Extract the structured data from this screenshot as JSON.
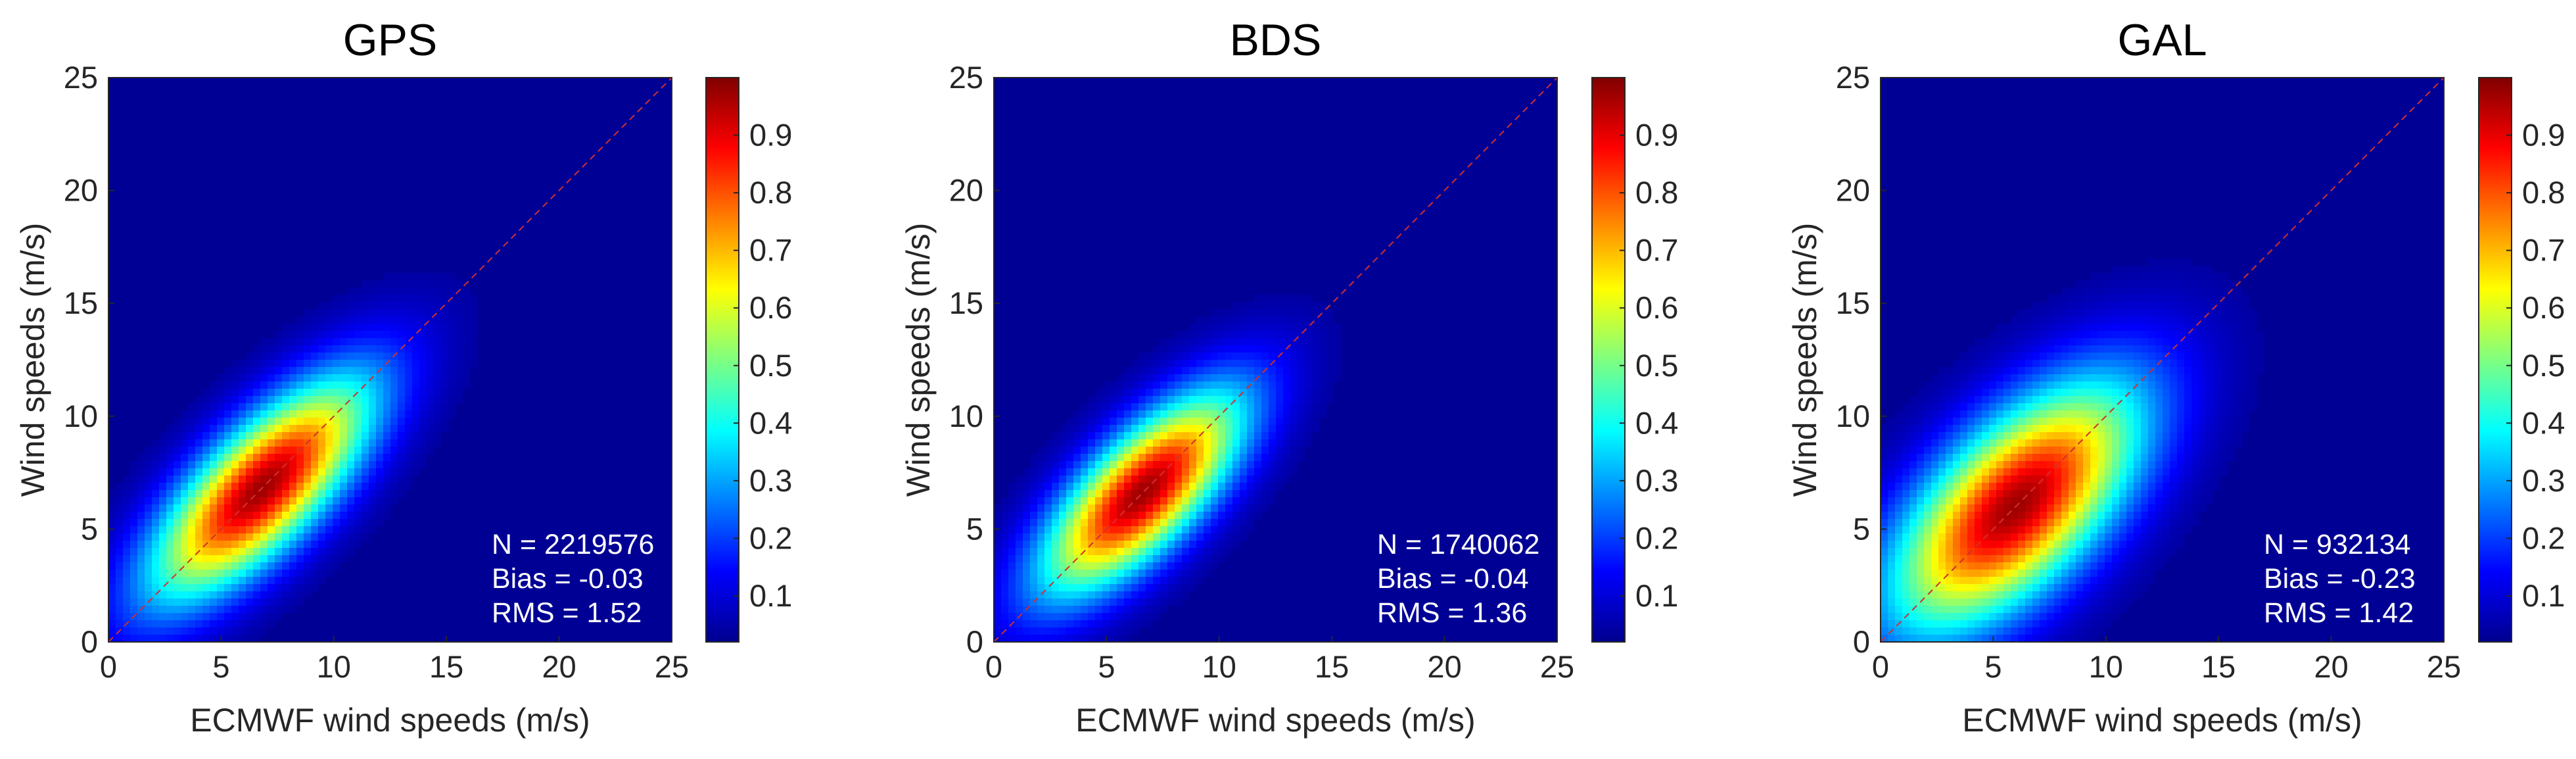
{
  "chart_data": [
    {
      "type": "heatmap",
      "title": "GPS",
      "xlabel": "ECMWF wind speeds (m/s)",
      "ylabel": "Wind speeds (m/s)",
      "xlim": [
        0,
        25
      ],
      "ylim": [
        0,
        25
      ],
      "x_ticks": [
        "0",
        "5",
        "10",
        "15",
        "20",
        "25"
      ],
      "y_ticks": [
        "0",
        "5",
        "10",
        "15",
        "20",
        "25"
      ],
      "colorbar": {
        "range": [
          0.02,
          1.0
        ],
        "ticks": [
          "0.1",
          "0.2",
          "0.3",
          "0.4",
          "0.5",
          "0.6",
          "0.7",
          "0.8",
          "0.9"
        ]
      },
      "density_peak": {
        "x": 6.8,
        "y": 6.8,
        "spread_along": 4.4,
        "spread_across": 1.7
      },
      "reference_line": {
        "from": [
          0,
          0
        ],
        "to": [
          25,
          25
        ]
      },
      "stats": [
        "N = 2219576",
        "Bias = -0.03",
        "RMS = 1.52"
      ]
    },
    {
      "type": "heatmap",
      "title": "BDS",
      "xlabel": "ECMWF wind speeds (m/s)",
      "ylabel": "Wind speeds (m/s)",
      "xlim": [
        0,
        25
      ],
      "ylim": [
        0,
        25
      ],
      "x_ticks": [
        "0",
        "5",
        "10",
        "15",
        "20",
        "25"
      ],
      "y_ticks": [
        "0",
        "5",
        "10",
        "15",
        "20",
        "25"
      ],
      "colorbar": {
        "range": [
          0.02,
          1.0
        ],
        "ticks": [
          "0.1",
          "0.2",
          "0.3",
          "0.4",
          "0.5",
          "0.6",
          "0.7",
          "0.8",
          "0.9"
        ]
      },
      "density_peak": {
        "x": 6.6,
        "y": 6.6,
        "spread_along": 4.0,
        "spread_across": 1.6
      },
      "reference_line": {
        "from": [
          0,
          0
        ],
        "to": [
          25,
          25
        ]
      },
      "stats": [
        "N = 1740062",
        "Bias = -0.04",
        "RMS = 1.36"
      ]
    },
    {
      "type": "heatmap",
      "title": "GAL",
      "xlabel": "ECMWF wind speeds (m/s)",
      "ylabel": "Wind speeds (m/s)",
      "xlim": [
        0,
        25
      ],
      "ylim": [
        0,
        25
      ],
      "x_ticks": [
        "0",
        "5",
        "10",
        "15",
        "20",
        "25"
      ],
      "y_ticks": [
        "0",
        "5",
        "10",
        "15",
        "20",
        "25"
      ],
      "colorbar": {
        "range": [
          0.02,
          1.0
        ],
        "ticks": [
          "0.1",
          "0.2",
          "0.3",
          "0.4",
          "0.5",
          "0.6",
          "0.7",
          "0.8",
          "0.9"
        ]
      },
      "density_peak": {
        "x": 6.0,
        "y": 6.0,
        "spread_along": 4.8,
        "spread_across": 2.3
      },
      "reference_line": {
        "from": [
          0,
          0
        ],
        "to": [
          25,
          25
        ]
      },
      "stats": [
        "N = 932134",
        "Bias = -0.23",
        "RMS = 1.42"
      ]
    }
  ]
}
